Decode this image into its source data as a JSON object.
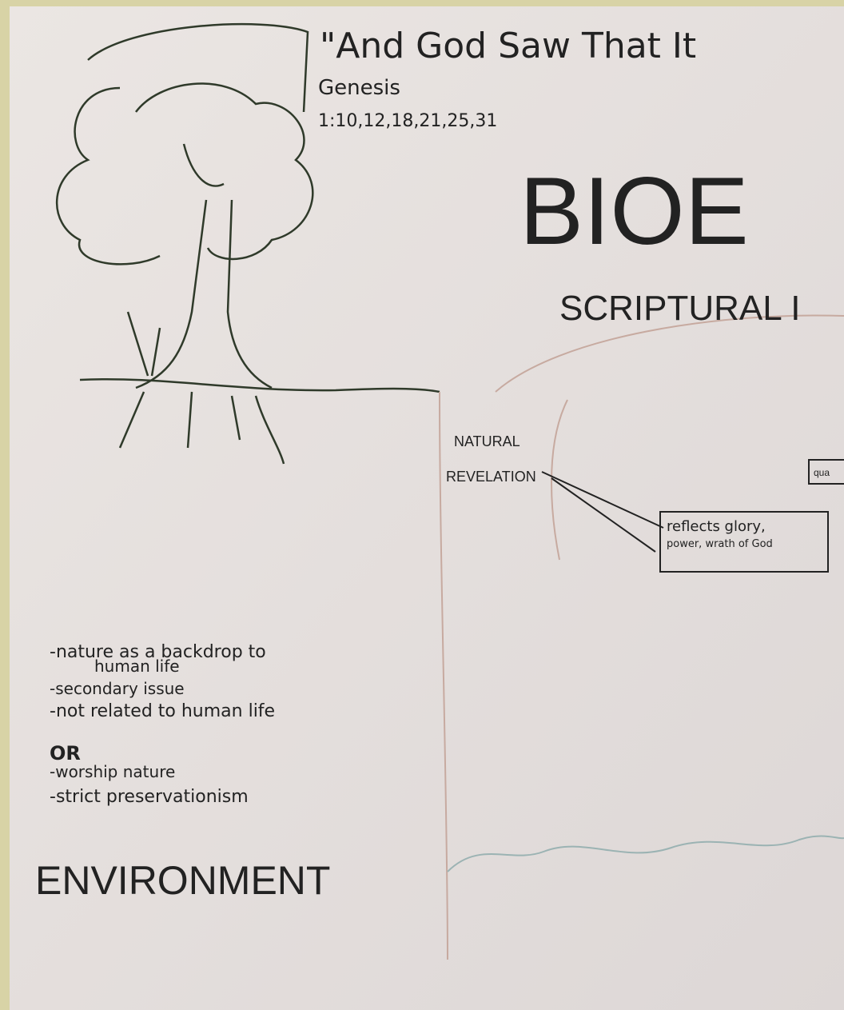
{
  "header": {
    "quote": "\"And God Saw That It",
    "reference": "Genesis",
    "verses": "1:10,12,18,21,25,31"
  },
  "title": "BIOE",
  "subtitle": "SCRIPTURAL I",
  "natural_revelation": {
    "label": [
      "NATURAL",
      "REVELATION"
    ],
    "callout": [
      "reflects glory,",
      "power, wrath of God"
    ]
  },
  "side_box": "qua",
  "environment": {
    "notes": [
      "-nature as a backdrop to",
      "human life",
      "-secondary issue",
      "-not related to human life"
    ],
    "separator": "OR",
    "alt_notes": [
      "-worship nature",
      "-strict preservationism"
    ],
    "label": "ENVIRONMENT"
  }
}
